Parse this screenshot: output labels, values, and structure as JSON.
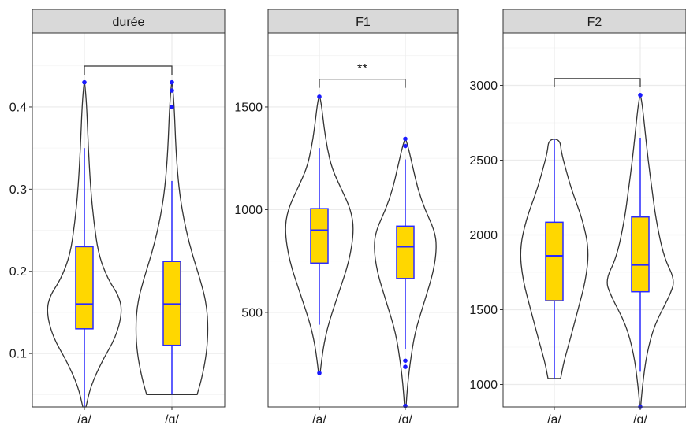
{
  "chart_data": [
    {
      "type": "violin-box",
      "title": "durée",
      "categories": [
        "/a/",
        "/ɑ/"
      ],
      "ylim": [
        0.035,
        0.49
      ],
      "yticks": [
        0.1,
        0.2,
        0.3,
        0.4
      ],
      "ytick_labels": [
        "0.1",
        "0.2",
        "0.3",
        "0.4"
      ],
      "significance": "",
      "grid": true,
      "groups": [
        {
          "label": "/a/",
          "box": {
            "min": 0.035,
            "q1": 0.13,
            "median": 0.16,
            "q3": 0.23,
            "max": 0.35
          },
          "outliers": [
            0.43
          ],
          "violin": {
            "y": [
              0.035,
              0.06,
              0.09,
              0.12,
              0.15,
              0.17,
              0.19,
              0.22,
              0.26,
              0.3,
              0.35,
              0.4,
              0.43
            ],
            "halfwidth": [
              0.002,
              0.008,
              0.022,
              0.04,
              0.048,
              0.044,
              0.03,
              0.018,
              0.012,
              0.008,
              0.005,
              0.003,
              0.0005
            ]
          }
        },
        {
          "label": "/ɑ/",
          "box": {
            "min": 0.05,
            "q1": 0.11,
            "median": 0.16,
            "q3": 0.212,
            "max": 0.31
          },
          "outliers": [
            0.4,
            0.42,
            0.43
          ],
          "violin": {
            "y": [
              0.05,
              0.07,
              0.1,
              0.13,
              0.16,
              0.19,
              0.22,
              0.25,
              0.28,
              0.31,
              0.35,
              0.4,
              0.43
            ],
            "halfwidth": [
              0.032,
              0.038,
              0.044,
              0.046,
              0.044,
              0.036,
              0.026,
              0.018,
              0.012,
              0.008,
              0.005,
              0.003,
              0.0005
            ]
          }
        }
      ]
    },
    {
      "type": "violin-box",
      "title": "F1",
      "categories": [
        "/a/",
        "/ɑ/"
      ],
      "ylim": [
        40,
        1860
      ],
      "yticks": [
        500,
        1000,
        1500
      ],
      "ytick_labels": [
        "500",
        "1000",
        "1500"
      ],
      "significance": "**",
      "grid": true,
      "groups": [
        {
          "label": "/a/",
          "box": {
            "min": 440,
            "q1": 740,
            "median": 900,
            "q3": 1005,
            "max": 1300
          },
          "outliers": [
            1550,
            205
          ],
          "violin": {
            "y": [
              205,
              270,
              350,
              450,
              600,
              750,
              900,
              1000,
              1100,
              1200,
              1300,
              1400,
              1500,
              1555
            ],
            "halfwidth": [
              0.001,
              0.003,
              0.006,
              0.012,
              0.025,
              0.038,
              0.044,
              0.04,
              0.028,
              0.016,
              0.01,
              0.006,
              0.003,
              0.0005
            ]
          }
        },
        {
          "label": "/ɑ/",
          "box": {
            "min": 320,
            "q1": 665,
            "median": 820,
            "q3": 920,
            "max": 1245
          },
          "outliers": [
            1345,
            1310,
            265,
            235,
            45
          ],
          "violin": {
            "y": [
              45,
              150,
              250,
              400,
              550,
              700,
              820,
              900,
              1000,
              1100,
              1200,
              1300,
              1345
            ],
            "halfwidth": [
              0.001,
              0.003,
              0.006,
              0.012,
              0.024,
              0.036,
              0.04,
              0.037,
              0.025,
              0.016,
              0.01,
              0.004,
              0.0005
            ]
          }
        }
      ]
    },
    {
      "type": "violin-box",
      "title": "F2",
      "categories": [
        "/a/",
        "/ɑ/"
      ],
      "ylim": [
        850,
        3350
      ],
      "yticks": [
        1000,
        1500,
        2000,
        2500,
        3000
      ],
      "ytick_labels": [
        "1000",
        "1500",
        "2000",
        "2500",
        "3000"
      ],
      "significance": "",
      "grid": true,
      "groups": [
        {
          "label": "/a/",
          "box": {
            "min": 1040,
            "q1": 1560,
            "median": 1860,
            "q3": 2085,
            "max": 2640
          },
          "outliers": [],
          "violin": {
            "y": [
              1040,
              1150,
              1300,
              1500,
              1700,
              1900,
              2100,
              2300,
              2450,
              2550,
              2640
            ],
            "halfwidth": [
              0.008,
              0.012,
              0.02,
              0.03,
              0.04,
              0.044,
              0.036,
              0.022,
              0.014,
              0.009,
              0.007
            ]
          }
        },
        {
          "label": "/ɑ/",
          "box": {
            "min": 1085,
            "q1": 1620,
            "median": 1800,
            "q3": 2120,
            "max": 2650
          },
          "outliers": [
            2935,
            850
          ],
          "violin": {
            "y": [
              850,
              1000,
              1200,
              1400,
              1600,
              1700,
              1850,
              2100,
              2300,
              2500,
              2700,
              2850,
              2935
            ],
            "halfwidth": [
              0.0005,
              0.003,
              0.008,
              0.018,
              0.038,
              0.044,
              0.03,
              0.02,
              0.015,
              0.01,
              0.006,
              0.003,
              0.0005
            ]
          }
        }
      ]
    }
  ],
  "colors": {
    "panel_background": "#ffffff",
    "strip_background": "#d9d9d9",
    "strip_border": "#333333",
    "grid": "#ebebeb",
    "violin_outline": "#333333",
    "box_fill": "#ffd700",
    "box_line": "#2a2aff",
    "point": "#1a1aff",
    "bracket": "#333333",
    "text": "#1a1a1a"
  }
}
